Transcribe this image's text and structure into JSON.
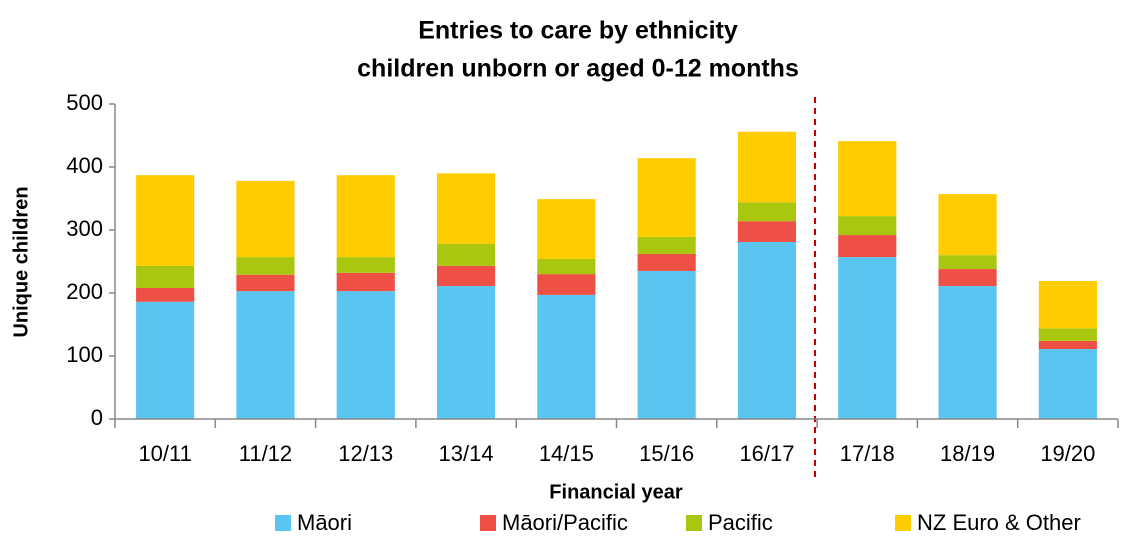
{
  "chart_data": {
    "type": "stacked_bar",
    "title": "Entries to care by ethnicity",
    "subtitle": "children unborn or aged 0-12 months",
    "x_label": "Financial year",
    "y_label": "Unique children",
    "categories": [
      "10/11",
      "11/12",
      "12/13",
      "13/14",
      "14/15",
      "15/16",
      "16/17",
      "17/18",
      "18/19",
      "19/20"
    ],
    "series": [
      {
        "name": "Māori",
        "color": "#5bc5f2",
        "values": [
          186,
          203,
          203,
          211,
          197,
          235,
          281,
          257,
          211,
          111
        ]
      },
      {
        "name": "Māori/Pacific",
        "color": "#ef5046",
        "values": [
          22,
          26,
          29,
          32,
          33,
          27,
          33,
          35,
          27,
          13
        ]
      },
      {
        "name": "Pacific",
        "color": "#a8c70e",
        "values": [
          35,
          28,
          25,
          35,
          24,
          27,
          30,
          30,
          22,
          20
        ]
      },
      {
        "name": "NZ Euro & Other",
        "color": "#ffcc00",
        "values": [
          144,
          121,
          130,
          112,
          95,
          125,
          112,
          119,
          97,
          75
        ]
      }
    ],
    "ylim": [
      0,
      500
    ],
    "yticks": [
      0,
      100,
      200,
      300,
      400,
      500
    ],
    "grid": false
  }
}
